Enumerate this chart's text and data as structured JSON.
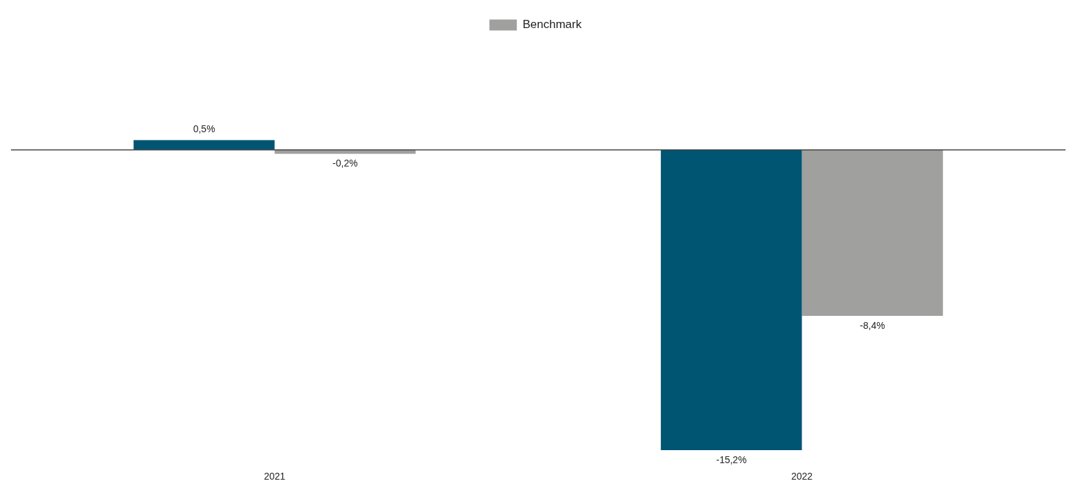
{
  "chart_data": {
    "type": "bar",
    "categories": [
      "2021",
      "2022"
    ],
    "series": [
      {
        "color": "#005573",
        "values": [
          0.5,
          -15.2
        ],
        "value_labels": [
          "0,5%",
          "-15,2%"
        ]
      },
      {
        "name": "Benchmark",
        "color": "#a0a09f",
        "values": [
          -0.2,
          -8.4
        ],
        "value_labels": [
          "-0,2%",
          "-8,4%"
        ]
      }
    ],
    "legend": "top",
    "grid": false
  }
}
